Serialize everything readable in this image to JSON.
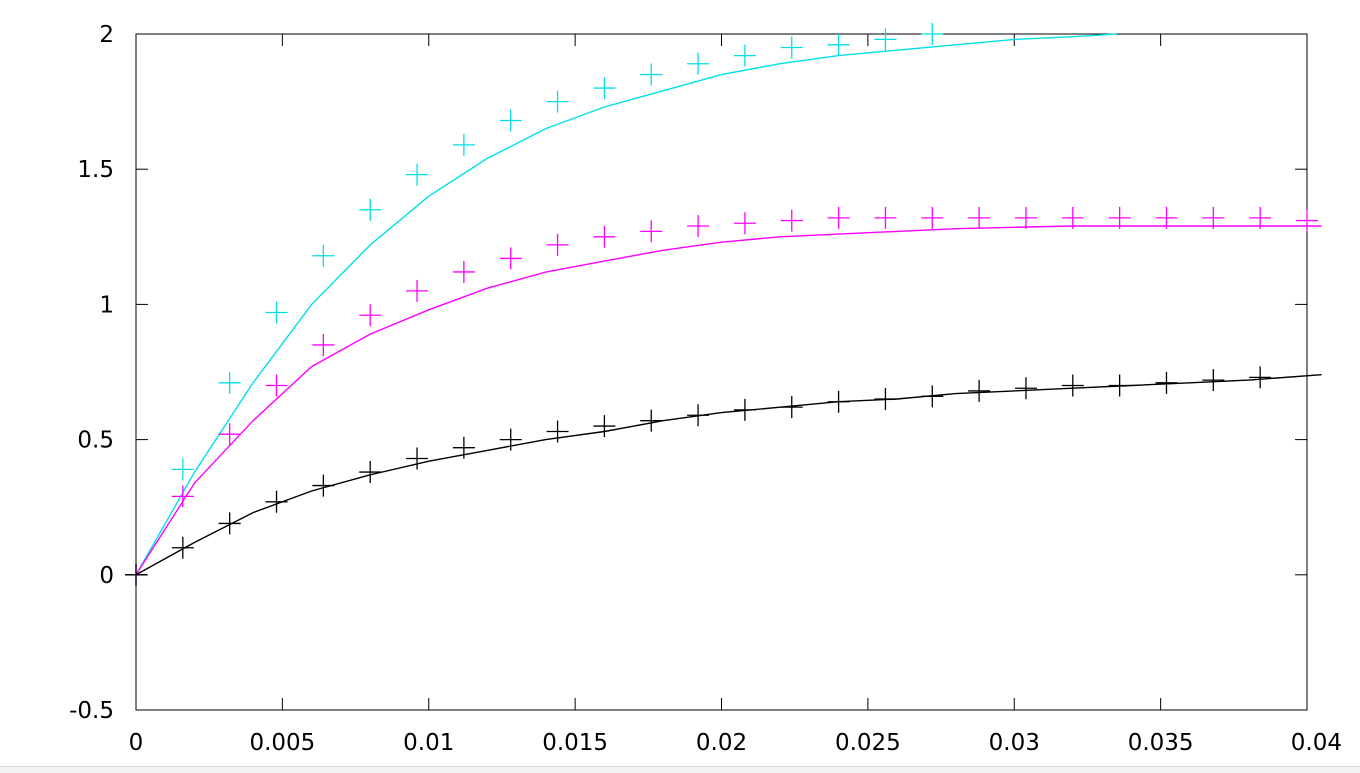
{
  "chart_data": {
    "type": "scatter",
    "title": "",
    "xlabel": "",
    "ylabel": "",
    "xlim": [
      0,
      0.04
    ],
    "ylim": [
      -0.5,
      2
    ],
    "grid": false,
    "legend": "none",
    "x_ticks": [
      "0",
      "0.005",
      "0.01",
      "0.015",
      "0.02",
      "0.025",
      "0.03",
      "0.035",
      "0.04"
    ],
    "y_ticks": [
      "-0.5",
      "0",
      "0.5",
      "1",
      "1.5",
      "2"
    ],
    "x_tick_values": [
      0,
      0.005,
      0.01,
      0.015,
      0.02,
      0.025,
      0.03,
      0.035,
      0.04
    ],
    "y_tick_values": [
      -0.5,
      0,
      0.5,
      1,
      1.5,
      2
    ],
    "series": [
      {
        "color": "#00e0e8",
        "points_x": [
          0,
          0.0016,
          0.0032,
          0.0048,
          0.0064,
          0.008,
          0.0096,
          0.0112,
          0.0128,
          0.0144,
          0.016,
          0.0176,
          0.0192,
          0.0208,
          0.0224,
          0.024,
          0.0256,
          0.0272
        ],
        "points_y": [
          0,
          0.39,
          0.71,
          0.97,
          1.18,
          1.35,
          1.48,
          1.59,
          1.68,
          1.75,
          1.8,
          1.85,
          1.89,
          1.92,
          1.95,
          1.96,
          1.98,
          2.0
        ],
        "line_x": [
          0,
          0.002,
          0.004,
          0.006,
          0.008,
          0.01,
          0.012,
          0.014,
          0.016,
          0.018,
          0.02,
          0.022,
          0.024,
          0.026,
          0.028,
          0.03,
          0.032,
          0.0335
        ],
        "line_y": [
          0,
          0.38,
          0.71,
          1.0,
          1.22,
          1.4,
          1.54,
          1.65,
          1.73,
          1.79,
          1.85,
          1.89,
          1.92,
          1.94,
          1.96,
          1.98,
          1.99,
          2.0
        ]
      },
      {
        "color": "#ff00ff",
        "points_x": [
          0,
          0.0016,
          0.0032,
          0.0048,
          0.0064,
          0.008,
          0.0096,
          0.0112,
          0.0128,
          0.0144,
          0.016,
          0.0176,
          0.0192,
          0.0208,
          0.0224,
          0.024,
          0.0256,
          0.0272,
          0.0288,
          0.0304,
          0.032,
          0.0336,
          0.0352,
          0.0368,
          0.0384,
          0.04
        ],
        "points_y": [
          0,
          0.29,
          0.52,
          0.7,
          0.85,
          0.96,
          1.05,
          1.12,
          1.17,
          1.22,
          1.25,
          1.27,
          1.29,
          1.3,
          1.31,
          1.32,
          1.32,
          1.32,
          1.32,
          1.32,
          1.32,
          1.32,
          1.32,
          1.32,
          1.32,
          1.31
        ],
        "line_x": [
          0,
          0.002,
          0.004,
          0.006,
          0.008,
          0.01,
          0.012,
          0.014,
          0.016,
          0.018,
          0.02,
          0.022,
          0.024,
          0.026,
          0.028,
          0.03,
          0.032,
          0.034,
          0.036,
          0.038,
          0.0405
        ],
        "line_y": [
          0,
          0.34,
          0.57,
          0.77,
          0.89,
          0.98,
          1.06,
          1.12,
          1.16,
          1.2,
          1.23,
          1.25,
          1.26,
          1.27,
          1.28,
          1.285,
          1.29,
          1.29,
          1.29,
          1.29,
          1.29
        ]
      },
      {
        "color": "#000000",
        "points_x": [
          0,
          0.0016,
          0.0032,
          0.0048,
          0.0064,
          0.008,
          0.0096,
          0.0112,
          0.0128,
          0.0144,
          0.016,
          0.0176,
          0.0192,
          0.0208,
          0.0224,
          0.024,
          0.0256,
          0.0272,
          0.0288,
          0.0304,
          0.032,
          0.0336,
          0.0352,
          0.0368,
          0.0384
        ],
        "points_y": [
          0,
          0.1,
          0.19,
          0.27,
          0.33,
          0.38,
          0.43,
          0.47,
          0.5,
          0.53,
          0.55,
          0.57,
          0.59,
          0.61,
          0.62,
          0.64,
          0.65,
          0.66,
          0.68,
          0.69,
          0.7,
          0.7,
          0.71,
          0.72,
          0.73
        ],
        "line_x": [
          0,
          0.002,
          0.004,
          0.006,
          0.008,
          0.01,
          0.012,
          0.014,
          0.016,
          0.018,
          0.02,
          0.022,
          0.024,
          0.026,
          0.028,
          0.03,
          0.032,
          0.034,
          0.036,
          0.038,
          0.0405
        ],
        "line_y": [
          0,
          0.12,
          0.23,
          0.31,
          0.37,
          0.42,
          0.46,
          0.5,
          0.53,
          0.57,
          0.6,
          0.62,
          0.64,
          0.65,
          0.67,
          0.68,
          0.69,
          0.7,
          0.71,
          0.72,
          0.74
        ]
      }
    ]
  }
}
